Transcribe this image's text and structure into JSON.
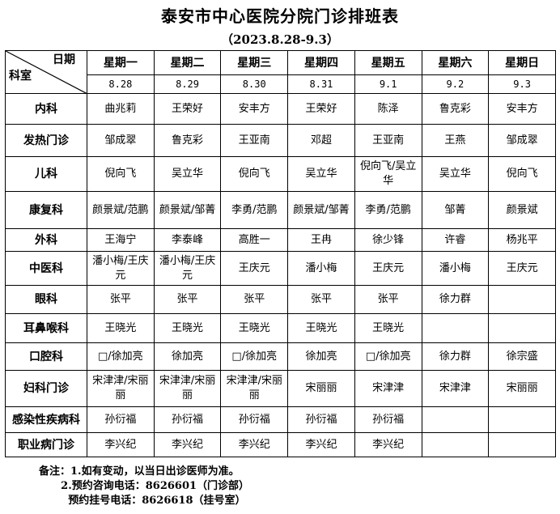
{
  "title": "泰安市中心医院分院门诊排班表",
  "subtitle": "（2023.8.28-9.3）",
  "corner": {
    "top": "日期",
    "bottom": "科室"
  },
  "days": [
    "星期一",
    "星期二",
    "星期三",
    "星期四",
    "星期五",
    "星期六",
    "星期日"
  ],
  "dates": [
    "8.28",
    "8.29",
    "8.30",
    "8.31",
    "9.1",
    "9.2",
    "9.3"
  ],
  "rows": [
    {
      "dept": "内科",
      "cells": [
        "曲兆莉",
        "王荣好",
        "安丰方",
        "王荣好",
        "陈泽",
        "鲁克彩",
        "安丰方"
      ]
    },
    {
      "dept": "发热门诊",
      "cells": [
        "邹成翠",
        "鲁克彩",
        "王亚南",
        "邓超",
        "王亚南",
        "王燕",
        "邹成翠"
      ]
    },
    {
      "dept": "儿科",
      "cells": [
        "倪向飞",
        "吴立华",
        "倪向飞",
        "吴立华",
        "倪向飞/吴立华",
        "吴立华",
        "倪向飞"
      ]
    },
    {
      "dept": "康复科",
      "cells": [
        "颜景斌/范鹏",
        "颜景斌/邹菁",
        "李勇/范鹏",
        "颜景斌/邹菁",
        "李勇/范鹏",
        "邹菁",
        "颜景斌"
      ]
    },
    {
      "dept": "外科",
      "cells": [
        "王海宁",
        "李泰峰",
        "高胜一",
        "王冉",
        "徐少锋",
        "许睿",
        "杨兆平"
      ]
    },
    {
      "dept": "中医科",
      "cells": [
        "潘小梅/王庆元",
        "潘小梅/王庆元",
        "王庆元",
        "潘小梅",
        "王庆元",
        "潘小梅",
        "王庆元"
      ]
    },
    {
      "dept": "眼科",
      "cells": [
        "张平",
        "张平",
        "张平",
        "张平",
        "张平",
        "徐力群",
        ""
      ]
    },
    {
      "dept": "耳鼻喉科",
      "cells": [
        "王晓光",
        "王晓光",
        "王晓光",
        "王晓光",
        "王晓光",
        "",
        ""
      ]
    },
    {
      "dept": "口腔科",
      "cells": [
        "□/徐加亮",
        "徐加亮",
        "□/徐加亮",
        "徐加亮",
        "□/徐加亮",
        "徐力群",
        "徐宗盛"
      ]
    },
    {
      "dept": "妇科门诊",
      "cells": [
        "宋津津/宋丽丽",
        "宋津津/宋丽丽",
        "宋津津/宋丽丽",
        "宋丽丽",
        "宋津津",
        "宋津津",
        "宋丽丽"
      ]
    },
    {
      "dept": "感染性疾病科",
      "cells": [
        "孙衍福",
        "孙衍福",
        "孙衍福",
        "孙衍福",
        "孙衍福",
        "",
        ""
      ]
    },
    {
      "dept": "职业病门诊",
      "cells": [
        "李兴纪",
        "李兴纪",
        "李兴纪",
        "李兴纪",
        "李兴纪",
        "",
        ""
      ]
    }
  ],
  "notes": [
    "备注：1.如有变动，以当日出诊医师为准。",
    "      2.预约咨询电话：8626601（门诊部）",
    "        预约挂号电话：8626618（挂号室）"
  ]
}
